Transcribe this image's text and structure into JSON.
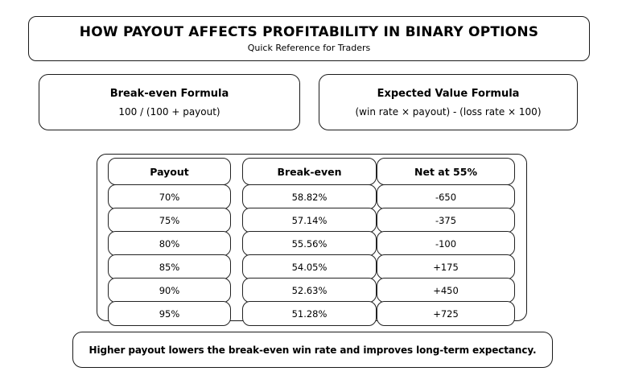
{
  "page": {
    "background": "#ffffff",
    "border_color": "#1a1a1a",
    "text_color": "#000000"
  },
  "header": {
    "title": "HOW PAYOUT AFFECTS PROFITABILITY IN BINARY OPTIONS",
    "subtitle": "Quick Reference for Traders"
  },
  "formula_cards": [
    {
      "title": "Break-even Formula",
      "formula": "100 / (100 + payout)"
    },
    {
      "title": "Expected Value Formula",
      "formula": "(win rate × payout) - (loss rate × 100)"
    }
  ],
  "chart_data": {
    "type": "table",
    "columns": [
      "Payout",
      "Break-even",
      "Net at 55%"
    ],
    "rows": [
      [
        "70%",
        "58.82%",
        "-650"
      ],
      [
        "75%",
        "57.14%",
        "-375"
      ],
      [
        "80%",
        "55.56%",
        "-100"
      ],
      [
        "85%",
        "54.05%",
        "+175"
      ],
      [
        "90%",
        "52.63%",
        "+450"
      ],
      [
        "95%",
        "51.28%",
        "+725"
      ]
    ]
  },
  "footer": {
    "note": "Higher payout lowers the break-even win rate and improves long-term expectancy."
  }
}
